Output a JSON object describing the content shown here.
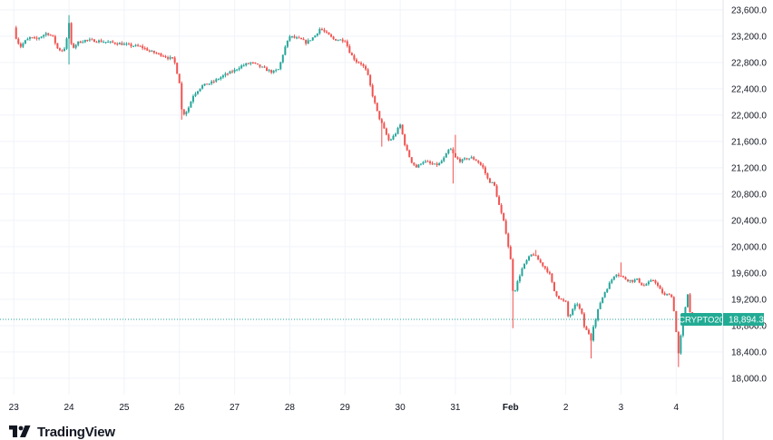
{
  "brand": {
    "name": "TradingView",
    "logo_icon": "tradingview-logo-icon"
  },
  "colors": {
    "up": "#26a69a",
    "down": "#ef5350",
    "grid": "#f0f3fa",
    "price_line": "#26a69a",
    "label_bg": "#22ab94"
  },
  "price_label": {
    "symbol": "CRYPTO20",
    "value": "18,894.3"
  },
  "chart_data": {
    "type": "candlestick",
    "title": "",
    "series_name": "CRYPTO20",
    "last_price": 18894.3,
    "ylim": [
      17750,
      23750
    ],
    "y_ticks": [
      "23,600.0",
      "23,200.0",
      "22,800.0",
      "22,400.0",
      "22,000.0",
      "21,600.0",
      "21,200.0",
      "20,800.0",
      "20,400.0",
      "20,000.0",
      "19,600.0",
      "19,200.0",
      "18,800.0",
      "18,400.0",
      "18,000.0"
    ],
    "y_tick_values": [
      23600,
      23200,
      22800,
      22400,
      22000,
      21600,
      21200,
      20800,
      20400,
      20000,
      19600,
      19200,
      18800,
      18400,
      18000
    ],
    "x_ticks": [
      "23",
      "24",
      "25",
      "26",
      "27",
      "28",
      "29",
      "30",
      "31",
      "Feb",
      "2",
      "3",
      "4"
    ],
    "x_tick_bold": [
      false,
      false,
      false,
      false,
      false,
      false,
      false,
      false,
      false,
      true,
      false,
      false,
      false
    ],
    "x_unit": "day index (0 = Jan 23 00:00)",
    "x_range": [
      -0.25,
      12.85
    ],
    "close_path": [
      [
        0.0,
        23330
      ],
      [
        0.05,
        23150
      ],
      [
        0.12,
        23040
      ],
      [
        0.2,
        23120
      ],
      [
        0.3,
        23180
      ],
      [
        0.4,
        23150
      ],
      [
        0.5,
        23200
      ],
      [
        0.6,
        23250
      ],
      [
        0.7,
        23200
      ],
      [
        0.8,
        23000
      ],
      [
        0.9,
        22980
      ],
      [
        0.95,
        23100
      ],
      [
        1.0,
        23400
      ],
      [
        1.05,
        23000
      ],
      [
        1.15,
        23100
      ],
      [
        1.3,
        23140
      ],
      [
        1.5,
        23130
      ],
      [
        1.7,
        23110
      ],
      [
        1.9,
        23090
      ],
      [
        2.1,
        23060
      ],
      [
        2.3,
        23040
      ],
      [
        2.5,
        22960
      ],
      [
        2.7,
        22910
      ],
      [
        2.8,
        22870
      ],
      [
        2.9,
        22850
      ],
      [
        3.0,
        22500
      ],
      [
        3.05,
        22000
      ],
      [
        3.15,
        22080
      ],
      [
        3.25,
        22300
      ],
      [
        3.4,
        22440
      ],
      [
        3.6,
        22500
      ],
      [
        3.8,
        22600
      ],
      [
        4.0,
        22680
      ],
      [
        4.1,
        22740
      ],
      [
        4.3,
        22800
      ],
      [
        4.5,
        22720
      ],
      [
        4.6,
        22680
      ],
      [
        4.7,
        22650
      ],
      [
        4.8,
        22700
      ],
      [
        4.9,
        23000
      ],
      [
        5.0,
        23200
      ],
      [
        5.1,
        23170
      ],
      [
        5.2,
        23150
      ],
      [
        5.3,
        23100
      ],
      [
        5.45,
        23200
      ],
      [
        5.55,
        23320
      ],
      [
        5.65,
        23250
      ],
      [
        5.8,
        23150
      ],
      [
        6.0,
        23140
      ],
      [
        6.1,
        22930
      ],
      [
        6.2,
        22820
      ],
      [
        6.3,
        22780
      ],
      [
        6.4,
        22650
      ],
      [
        6.5,
        22300
      ],
      [
        6.6,
        22000
      ],
      [
        6.7,
        21800
      ],
      [
        6.8,
        21600
      ],
      [
        6.9,
        21700
      ],
      [
        7.0,
        21850
      ],
      [
        7.1,
        21500
      ],
      [
        7.2,
        21300
      ],
      [
        7.3,
        21200
      ],
      [
        7.4,
        21300
      ],
      [
        7.5,
        21280
      ],
      [
        7.6,
        21240
      ],
      [
        7.7,
        21250
      ],
      [
        7.8,
        21350
      ],
      [
        7.9,
        21500
      ],
      [
        8.0,
        21350
      ],
      [
        8.1,
        21300
      ],
      [
        8.2,
        21340
      ],
      [
        8.3,
        21350
      ],
      [
        8.4,
        21300
      ],
      [
        8.5,
        21200
      ],
      [
        8.6,
        21000
      ],
      [
        8.7,
        20950
      ],
      [
        8.8,
        20600
      ],
      [
        8.9,
        20300
      ],
      [
        9.0,
        19800
      ],
      [
        9.05,
        19250
      ],
      [
        9.1,
        19400
      ],
      [
        9.2,
        19650
      ],
      [
        9.3,
        19800
      ],
      [
        9.4,
        19900
      ],
      [
        9.5,
        19800
      ],
      [
        9.6,
        19700
      ],
      [
        9.7,
        19600
      ],
      [
        9.8,
        19300
      ],
      [
        9.9,
        19200
      ],
      [
        10.0,
        19150
      ],
      [
        10.05,
        18900
      ],
      [
        10.1,
        19000
      ],
      [
        10.2,
        19150
      ],
      [
        10.3,
        18950
      ],
      [
        10.35,
        18700
      ],
      [
        10.4,
        18750
      ],
      [
        10.45,
        18550
      ],
      [
        10.5,
        18800
      ],
      [
        10.55,
        18900
      ],
      [
        10.6,
        19100
      ],
      [
        10.7,
        19300
      ],
      [
        10.8,
        19450
      ],
      [
        10.9,
        19600
      ],
      [
        11.0,
        19550
      ],
      [
        11.1,
        19500
      ],
      [
        11.2,
        19480
      ],
      [
        11.3,
        19500
      ],
      [
        11.4,
        19400
      ],
      [
        11.5,
        19450
      ],
      [
        11.6,
        19500
      ],
      [
        11.7,
        19350
      ],
      [
        11.8,
        19250
      ],
      [
        11.9,
        19300
      ],
      [
        11.95,
        19100
      ],
      [
        12.0,
        18700
      ],
      [
        12.05,
        18300
      ],
      [
        12.1,
        18800
      ],
      [
        12.15,
        18950
      ],
      [
        12.2,
        19350
      ],
      [
        12.25,
        19000
      ],
      [
        12.3,
        18894.3
      ]
    ],
    "spikes": [
      {
        "x": 1.0,
        "high": 23520
      },
      {
        "x": 1.02,
        "low": 22770
      },
      {
        "x": 3.05,
        "low": 21930
      },
      {
        "x": 6.68,
        "low": 21520
      },
      {
        "x": 8.0,
        "high": 21700
      },
      {
        "x": 7.95,
        "low": 20960
      },
      {
        "x": 9.05,
        "low": 18760
      },
      {
        "x": 9.45,
        "high": 19950
      },
      {
        "x": 10.45,
        "low": 18300
      },
      {
        "x": 11.0,
        "high": 19760
      },
      {
        "x": 12.05,
        "low": 18170
      }
    ]
  }
}
